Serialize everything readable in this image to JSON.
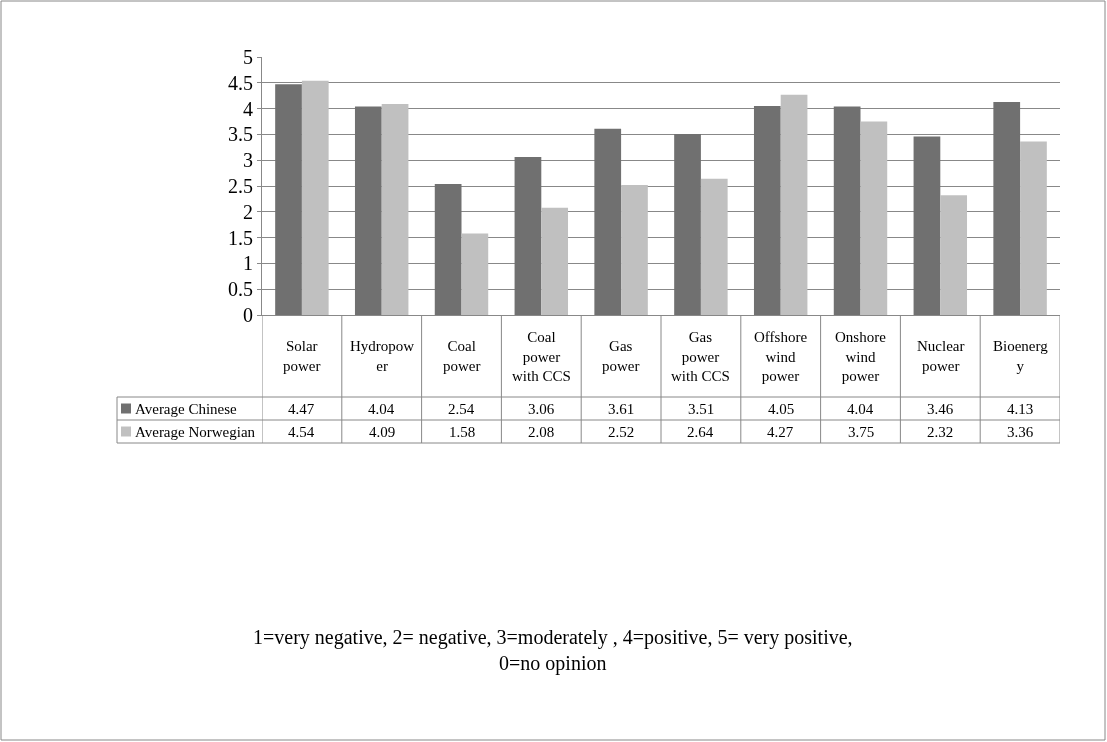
{
  "chart_data": {
    "type": "bar",
    "categories": [
      "Solar power",
      "Hydropower",
      "Coal power",
      "Coal power with CCS",
      "Gas power",
      "Gas power with CCS",
      "Offshore wind power",
      "Onshore wind power",
      "Nuclear power",
      "Bioenergy"
    ],
    "series": [
      {
        "name": "Average Chinese",
        "color": "#707070",
        "values": [
          4.47,
          4.04,
          2.54,
          3.06,
          3.61,
          3.51,
          4.05,
          4.04,
          3.46,
          4.13
        ]
      },
      {
        "name": "Average Norwegian",
        "color": "#c0c0c0",
        "values": [
          4.54,
          4.09,
          1.58,
          2.08,
          2.52,
          2.64,
          4.27,
          3.75,
          2.32,
          3.36
        ]
      }
    ],
    "ylim": [
      0,
      5
    ],
    "yticks": [
      0,
      0.5,
      1,
      1.5,
      2,
      2.5,
      3,
      3.5,
      4,
      4.5,
      5
    ],
    "grid": "y",
    "legend": "bottom left",
    "data_labels": true,
    "annotations": [
      "1=very negative, 2= negative, 3=moderately , 4=positive, 5= very positive, 0=no opinion"
    ]
  }
}
